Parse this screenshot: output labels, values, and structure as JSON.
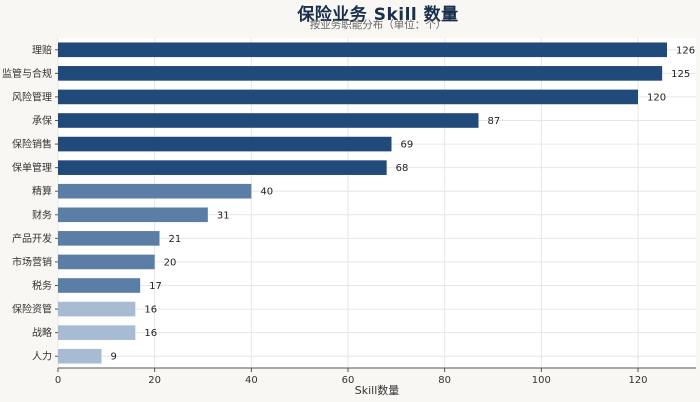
{
  "chart_data": {
    "type": "bar",
    "orientation": "horizontal",
    "title": "保险业务 Skill 数量",
    "subtitle": "按业务职能分布（单位：个）",
    "xlabel": "Skill数量",
    "ylabel": "",
    "xlim": [
      0,
      132
    ],
    "xticks": [
      0,
      20,
      40,
      60,
      80,
      100,
      120
    ],
    "grid": true,
    "categories": [
      "理赔",
      "监管与合规",
      "风险管理",
      "承保",
      "保险销售",
      "保单管理",
      "精算",
      "财务",
      "产品开发",
      "市场营销",
      "税务",
      "保险资管",
      "战略",
      "人力"
    ],
    "values": [
      126,
      125,
      120,
      87,
      69,
      68,
      40,
      31,
      21,
      20,
      17,
      16,
      16,
      9
    ],
    "colors": {
      "dark": "#1f4a7a",
      "medium": "#5b7ea6",
      "light": "#a7bbd3",
      "grid": "#e6e6e6",
      "plot_bg": "#ffffff",
      "page_bg": "#f8f7f3"
    }
  }
}
